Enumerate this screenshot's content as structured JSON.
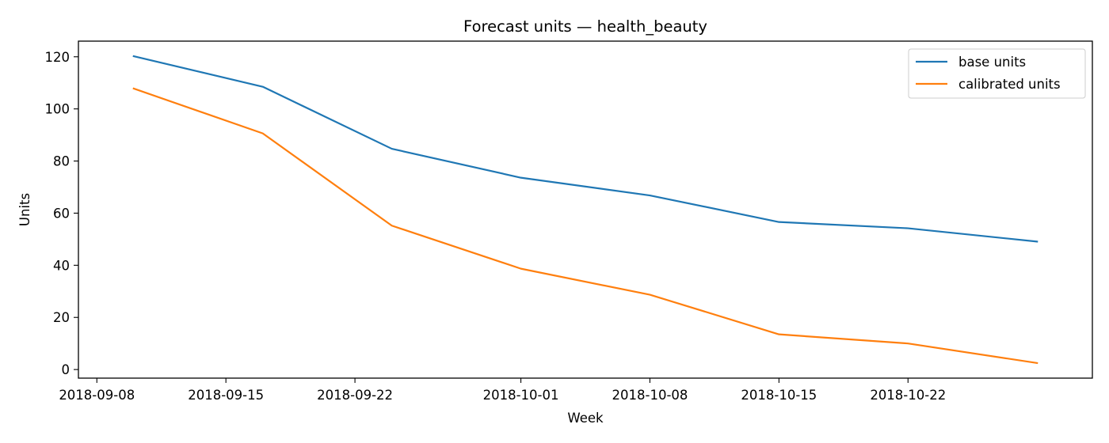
{
  "chart_data": {
    "type": "line",
    "title": "Forecast units — health_beauty",
    "xlabel": "Week",
    "ylabel": "Units",
    "x": [
      "2018-09-10",
      "2018-09-17",
      "2018-09-24",
      "2018-10-01",
      "2018-10-08",
      "2018-10-15",
      "2018-10-22",
      "2018-10-29"
    ],
    "xlim": [
      "2018-09-07",
      "2018-11-01"
    ],
    "ylim": [
      -3.3,
      126
    ],
    "xticks": [
      "2018-09-08",
      "2018-09-15",
      "2018-09-22",
      "2018-10-01",
      "2018-10-08",
      "2018-10-15",
      "2018-10-22"
    ],
    "yticks": [
      0,
      20,
      40,
      60,
      80,
      100,
      120
    ],
    "grid": false,
    "legend_position": "top-right",
    "series": [
      {
        "name": "base units",
        "color": "#1f77b4",
        "values": [
          120.2,
          108.5,
          84.7,
          73.6,
          66.8,
          56.6,
          54.2,
          49.1
        ]
      },
      {
        "name": "calibrated units",
        "color": "#ff7f0e",
        "values": [
          107.8,
          90.6,
          55.2,
          38.7,
          28.7,
          13.5,
          10.0,
          2.5
        ]
      }
    ]
  }
}
